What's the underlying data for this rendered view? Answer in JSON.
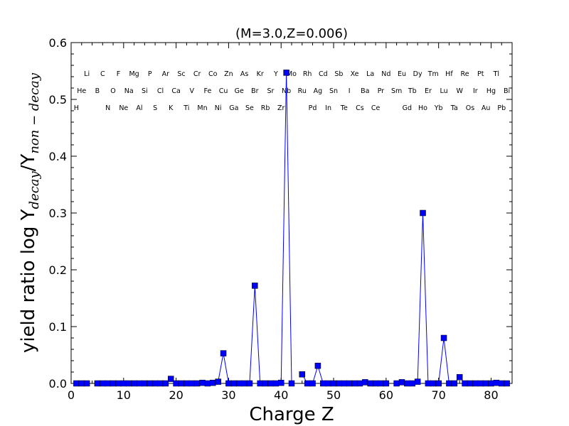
{
  "chart_data": {
    "type": "line",
    "title": "(M=3.0,Z=0.006)",
    "xlabel": "Charge Z",
    "ylabel": {
      "prefix": "yield ratio log Y",
      "sub1": "decay",
      "slash": "/Y",
      "sub2": "non − decay"
    },
    "xlim": [
      0,
      84
    ],
    "ylim": [
      0,
      0.6
    ],
    "xticks": [
      0,
      10,
      20,
      30,
      40,
      50,
      60,
      70,
      80
    ],
    "yticks": [
      0.0,
      0.1,
      0.2,
      0.3,
      0.4,
      0.5,
      0.6
    ],
    "ytick_labels": [
      "0.0",
      "0.1",
      "0.2",
      "0.3",
      "0.4",
      "0.5",
      "0.6"
    ],
    "grid": false,
    "series_color": "#0000ff",
    "elements": [
      {
        "z": 1,
        "symbol": "H"
      },
      {
        "z": 2,
        "symbol": "He"
      },
      {
        "z": 3,
        "symbol": "Li"
      },
      {
        "z": 5,
        "symbol": "B"
      },
      {
        "z": 6,
        "symbol": "C"
      },
      {
        "z": 7,
        "symbol": "N"
      },
      {
        "z": 8,
        "symbol": "O"
      },
      {
        "z": 9,
        "symbol": "F"
      },
      {
        "z": 10,
        "symbol": "Ne"
      },
      {
        "z": 11,
        "symbol": "Na"
      },
      {
        "z": 12,
        "symbol": "Mg"
      },
      {
        "z": 13,
        "symbol": "Al"
      },
      {
        "z": 14,
        "symbol": "Si"
      },
      {
        "z": 15,
        "symbol": "P"
      },
      {
        "z": 16,
        "symbol": "S"
      },
      {
        "z": 17,
        "symbol": "Cl"
      },
      {
        "z": 18,
        "symbol": "Ar"
      },
      {
        "z": 19,
        "symbol": "K"
      },
      {
        "z": 20,
        "symbol": "Ca"
      },
      {
        "z": 21,
        "symbol": "Sc"
      },
      {
        "z": 22,
        "symbol": "Ti"
      },
      {
        "z": 23,
        "symbol": "V"
      },
      {
        "z": 24,
        "symbol": "Cr"
      },
      {
        "z": 25,
        "symbol": "Mn"
      },
      {
        "z": 26,
        "symbol": "Fe"
      },
      {
        "z": 27,
        "symbol": "Co"
      },
      {
        "z": 28,
        "symbol": "Ni"
      },
      {
        "z": 29,
        "symbol": "Cu"
      },
      {
        "z": 30,
        "symbol": "Zn"
      },
      {
        "z": 31,
        "symbol": "Ga"
      },
      {
        "z": 32,
        "symbol": "Ge"
      },
      {
        "z": 33,
        "symbol": "As"
      },
      {
        "z": 34,
        "symbol": "Se"
      },
      {
        "z": 35,
        "symbol": "Br"
      },
      {
        "z": 36,
        "symbol": "Kr"
      },
      {
        "z": 37,
        "symbol": "Rb"
      },
      {
        "z": 38,
        "symbol": "Sr"
      },
      {
        "z": 39,
        "symbol": "Y"
      },
      {
        "z": 40,
        "symbol": "Zr"
      },
      {
        "z": 41,
        "symbol": "Nb"
      },
      {
        "z": 42,
        "symbol": "Mo"
      },
      {
        "z": 44,
        "symbol": "Ru"
      },
      {
        "z": 45,
        "symbol": "Rh"
      },
      {
        "z": 46,
        "symbol": "Pd"
      },
      {
        "z": 47,
        "symbol": "Ag"
      },
      {
        "z": 48,
        "symbol": "Cd"
      },
      {
        "z": 49,
        "symbol": "In"
      },
      {
        "z": 50,
        "symbol": "Sn"
      },
      {
        "z": 51,
        "symbol": "Sb"
      },
      {
        "z": 52,
        "symbol": "Te"
      },
      {
        "z": 53,
        "symbol": "I"
      },
      {
        "z": 54,
        "symbol": "Xe"
      },
      {
        "z": 55,
        "symbol": "Cs"
      },
      {
        "z": 56,
        "symbol": "Ba"
      },
      {
        "z": 57,
        "symbol": "La"
      },
      {
        "z": 58,
        "symbol": "Ce"
      },
      {
        "z": 59,
        "symbol": "Pr"
      },
      {
        "z": 60,
        "symbol": "Nd"
      },
      {
        "z": 62,
        "symbol": "Sm"
      },
      {
        "z": 63,
        "symbol": "Eu"
      },
      {
        "z": 64,
        "symbol": "Gd"
      },
      {
        "z": 65,
        "symbol": "Tb"
      },
      {
        "z": 66,
        "symbol": "Dy"
      },
      {
        "z": 67,
        "symbol": "Ho"
      },
      {
        "z": 68,
        "symbol": "Er"
      },
      {
        "z": 69,
        "symbol": "Tm"
      },
      {
        "z": 70,
        "symbol": "Yb"
      },
      {
        "z": 71,
        "symbol": "Lu"
      },
      {
        "z": 72,
        "symbol": "Hf"
      },
      {
        "z": 73,
        "symbol": "Ta"
      },
      {
        "z": 74,
        "symbol": "W"
      },
      {
        "z": 75,
        "symbol": "Re"
      },
      {
        "z": 76,
        "symbol": "Os"
      },
      {
        "z": 77,
        "symbol": "Ir"
      },
      {
        "z": 78,
        "symbol": "Pt"
      },
      {
        "z": 79,
        "symbol": "Au"
      },
      {
        "z": 80,
        "symbol": "Hg"
      },
      {
        "z": 81,
        "symbol": "Tl"
      },
      {
        "z": 82,
        "symbol": "Pb"
      },
      {
        "z": 83,
        "symbol": "Bi"
      }
    ],
    "segments": [
      [
        [
          1,
          0
        ],
        [
          2,
          0
        ],
        [
          3,
          0
        ]
      ],
      [
        [
          5,
          0
        ],
        [
          6,
          0
        ],
        [
          7,
          0
        ],
        [
          8,
          0
        ],
        [
          9,
          0
        ],
        [
          10,
          0
        ],
        [
          11,
          0
        ],
        [
          12,
          0
        ],
        [
          13,
          0
        ],
        [
          14,
          0
        ],
        [
          15,
          0
        ],
        [
          16,
          0
        ],
        [
          17,
          0
        ],
        [
          18,
          0
        ],
        [
          19,
          0.008
        ],
        [
          20,
          0
        ],
        [
          21,
          0
        ],
        [
          22,
          0
        ],
        [
          23,
          0
        ],
        [
          24,
          0
        ],
        [
          25,
          0.001
        ],
        [
          26,
          0
        ],
        [
          27,
          0.001
        ],
        [
          28,
          0.003
        ],
        [
          29,
          0.053
        ],
        [
          30,
          0
        ],
        [
          31,
          0
        ],
        [
          32,
          0
        ],
        [
          33,
          0
        ],
        [
          34,
          0
        ],
        [
          35,
          0.172
        ],
        [
          36,
          0
        ],
        [
          37,
          0
        ],
        [
          38,
          0
        ],
        [
          39,
          0
        ],
        [
          40,
          0.001
        ],
        [
          41,
          0.547
        ],
        [
          42,
          0
        ]
      ],
      [
        [
          44,
          0.016
        ],
        [
          45,
          0
        ],
        [
          46,
          0
        ],
        [
          47,
          0.031
        ],
        [
          48,
          0
        ],
        [
          49,
          0
        ],
        [
          50,
          0
        ],
        [
          51,
          0
        ],
        [
          52,
          0
        ],
        [
          53,
          0
        ],
        [
          54,
          0
        ],
        [
          55,
          0
        ],
        [
          56,
          0.002
        ],
        [
          57,
          0
        ],
        [
          58,
          0
        ],
        [
          59,
          0
        ],
        [
          60,
          0
        ]
      ],
      [
        [
          62,
          0
        ],
        [
          63,
          0.002
        ],
        [
          64,
          0
        ],
        [
          65,
          0
        ],
        [
          66,
          0.003
        ],
        [
          67,
          0.3
        ],
        [
          68,
          0
        ],
        [
          69,
          0
        ],
        [
          70,
          0
        ],
        [
          71,
          0.08
        ],
        [
          72,
          0
        ],
        [
          73,
          0
        ],
        [
          74,
          0.011
        ],
        [
          75,
          0
        ],
        [
          76,
          0
        ],
        [
          77,
          0
        ],
        [
          78,
          0
        ],
        [
          79,
          0
        ],
        [
          80,
          0
        ],
        [
          81,
          0.001
        ],
        [
          82,
          0
        ],
        [
          83,
          0
        ]
      ]
    ]
  }
}
